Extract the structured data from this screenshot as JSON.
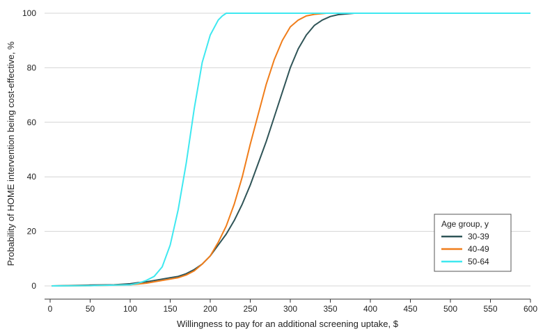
{
  "chart_data": {
    "type": "line",
    "xlabel": "Willingness to pay for an additional screening uptake, $",
    "ylabel": "Probability of HOME intervention being cost-effective, %",
    "xlim": [
      0,
      600
    ],
    "ylim": [
      0,
      100
    ],
    "x_ticks": [
      0,
      50,
      100,
      150,
      200,
      250,
      300,
      350,
      400,
      450,
      500,
      550,
      600
    ],
    "y_ticks": [
      0,
      20,
      40,
      60,
      80,
      100
    ],
    "grid": "horizontal",
    "legend": {
      "title": "Age group, y",
      "placement": "bottom-right"
    },
    "series": [
      {
        "name": "30-39",
        "color": "#2f5457",
        "points": [
          [
            2,
            0
          ],
          [
            50,
            0.3
          ],
          [
            80,
            0.4
          ],
          [
            100,
            0.8
          ],
          [
            110,
            1.2
          ],
          [
            120,
            1.5
          ],
          [
            130,
            2
          ],
          [
            140,
            2.5
          ],
          [
            150,
            3
          ],
          [
            160,
            3.5
          ],
          [
            170,
            4.5
          ],
          [
            180,
            6
          ],
          [
            190,
            8
          ],
          [
            200,
            11
          ],
          [
            210,
            15
          ],
          [
            220,
            19
          ],
          [
            230,
            24
          ],
          [
            240,
            30
          ],
          [
            250,
            37
          ],
          [
            260,
            45
          ],
          [
            270,
            53
          ],
          [
            280,
            62
          ],
          [
            290,
            71
          ],
          [
            300,
            80
          ],
          [
            310,
            87
          ],
          [
            320,
            92
          ],
          [
            330,
            95.5
          ],
          [
            340,
            97.5
          ],
          [
            350,
            98.8
          ],
          [
            360,
            99.5
          ],
          [
            380,
            100
          ],
          [
            600,
            100
          ]
        ]
      },
      {
        "name": "40-49",
        "color": "#f07d1a",
        "points": [
          [
            2,
            0
          ],
          [
            50,
            0.1
          ],
          [
            100,
            0.4
          ],
          [
            110,
            0.7
          ],
          [
            120,
            1
          ],
          [
            130,
            1.5
          ],
          [
            140,
            2
          ],
          [
            150,
            2.5
          ],
          [
            160,
            3
          ],
          [
            170,
            4
          ],
          [
            180,
            5.5
          ],
          [
            190,
            8
          ],
          [
            200,
            11
          ],
          [
            210,
            16
          ],
          [
            220,
            22
          ],
          [
            230,
            30
          ],
          [
            240,
            40
          ],
          [
            250,
            52
          ],
          [
            260,
            63
          ],
          [
            270,
            74
          ],
          [
            280,
            83
          ],
          [
            290,
            90
          ],
          [
            300,
            95
          ],
          [
            310,
            97.5
          ],
          [
            320,
            99
          ],
          [
            330,
            99.6
          ],
          [
            345,
            100
          ],
          [
            600,
            100
          ]
        ]
      },
      {
        "name": "50-64",
        "color": "#3ee8f0",
        "points": [
          [
            2,
            0
          ],
          [
            50,
            0.1
          ],
          [
            100,
            0.4
          ],
          [
            110,
            1
          ],
          [
            120,
            2
          ],
          [
            130,
            3.5
          ],
          [
            140,
            7
          ],
          [
            150,
            15
          ],
          [
            160,
            28
          ],
          [
            170,
            45
          ],
          [
            180,
            65
          ],
          [
            190,
            82
          ],
          [
            200,
            92
          ],
          [
            210,
            97.5
          ],
          [
            215,
            99
          ],
          [
            220,
            100
          ],
          [
            600,
            100
          ]
        ]
      }
    ]
  }
}
